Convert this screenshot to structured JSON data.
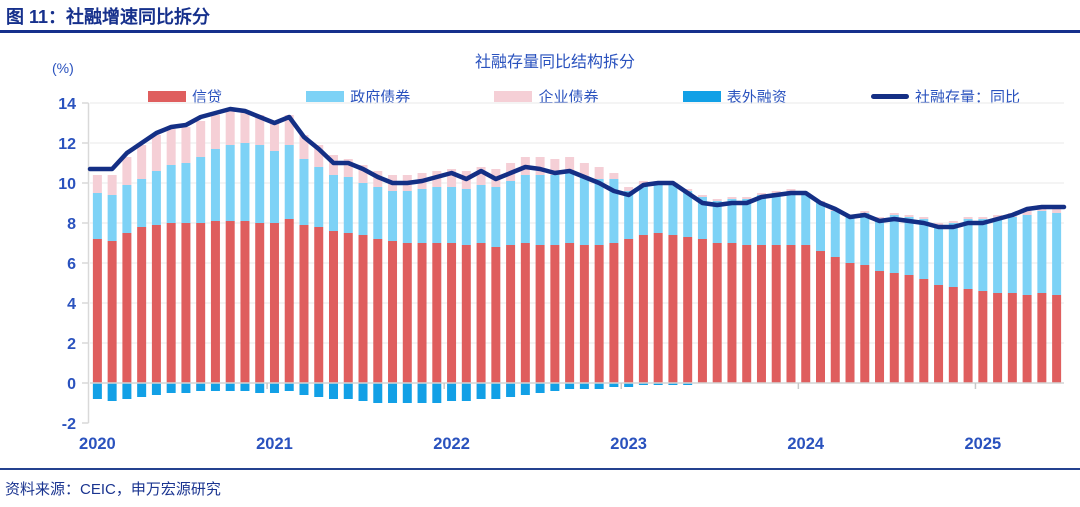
{
  "header": {
    "title": "图 11：社融增速同比拆分"
  },
  "footer": {
    "source": "资料来源：CEIC，申万宏源研究"
  },
  "chart": {
    "title": "社融存量同比结构拆分",
    "unit_label": "(%)"
  },
  "colors": {
    "navy_line": "#142F85",
    "royal_text": "#2A52BE",
    "credit": "#DF5E5E",
    "gov_bonds": "#7DD2F6",
    "corp_bonds": "#F5CFD6",
    "off_balance": "#12A0E6",
    "grid": "#EAEAEA",
    "zero_line": "#D4D4D4",
    "axis": "#D9D9D9"
  },
  "chart_data": {
    "type": "bar",
    "subtype": "stacked-bars-with-line-overlay",
    "title": "社融存量同比结构拆分",
    "ylabel": "(%)",
    "ylim": [
      -2,
      14
    ],
    "yticks": [
      -2,
      0,
      2,
      4,
      6,
      8,
      10,
      12,
      14
    ],
    "grid": true,
    "legend_position": "top",
    "x_year_labels": [
      "2020",
      "2021",
      "2022",
      "2023",
      "2024",
      "2025"
    ],
    "months": [
      "2020-01",
      "2020-02",
      "2020-03",
      "2020-04",
      "2020-05",
      "2020-06",
      "2020-07",
      "2020-08",
      "2020-09",
      "2020-10",
      "2020-11",
      "2020-12",
      "2021-01",
      "2021-02",
      "2021-03",
      "2021-04",
      "2021-05",
      "2021-06",
      "2021-07",
      "2021-08",
      "2021-09",
      "2021-10",
      "2021-11",
      "2021-12",
      "2022-01",
      "2022-02",
      "2022-03",
      "2022-04",
      "2022-05",
      "2022-06",
      "2022-07",
      "2022-08",
      "2022-09",
      "2022-10",
      "2022-11",
      "2022-12",
      "2023-01",
      "2023-02",
      "2023-03",
      "2023-04",
      "2023-05",
      "2023-06",
      "2023-07",
      "2023-08",
      "2023-09",
      "2023-10",
      "2023-11",
      "2023-12",
      "2024-01",
      "2024-02",
      "2024-03",
      "2024-04",
      "2024-05",
      "2024-06",
      "2024-07",
      "2024-08",
      "2024-09",
      "2024-10",
      "2024-11",
      "2024-12",
      "2025-01",
      "2025-02",
      "2025-03",
      "2025-04",
      "2025-05",
      "2025-06"
    ],
    "series": [
      {
        "key": "credit",
        "name": "信贷",
        "color_key": "credit",
        "values": [
          7.2,
          7.1,
          7.5,
          7.8,
          7.9,
          8.0,
          8.0,
          8.0,
          8.1,
          8.1,
          8.1,
          8.0,
          8.0,
          8.2,
          7.9,
          7.8,
          7.6,
          7.5,
          7.4,
          7.2,
          7.1,
          7.0,
          7.0,
          7.0,
          7.0,
          6.9,
          7.0,
          6.8,
          6.9,
          7.0,
          6.9,
          6.9,
          7.0,
          6.9,
          6.9,
          7.0,
          7.2,
          7.4,
          7.5,
          7.4,
          7.3,
          7.2,
          7.0,
          7.0,
          6.9,
          6.9,
          6.9,
          6.9,
          6.9,
          6.6,
          6.3,
          6.0,
          5.9,
          5.6,
          5.5,
          5.4,
          5.2,
          4.9,
          4.8,
          4.7,
          4.6,
          4.5,
          4.5,
          4.4,
          4.5,
          4.4
        ]
      },
      {
        "key": "gov-bonds",
        "name": "政府债券",
        "color_key": "gov_bonds",
        "values": [
          2.3,
          2.3,
          2.4,
          2.4,
          2.7,
          2.9,
          3.0,
          3.3,
          3.6,
          3.8,
          3.9,
          3.9,
          3.6,
          3.7,
          3.3,
          3.0,
          2.8,
          2.8,
          2.6,
          2.6,
          2.5,
          2.6,
          2.7,
          2.8,
          2.8,
          2.8,
          2.9,
          3.0,
          3.2,
          3.4,
          3.5,
          3.5,
          3.5,
          3.4,
          3.3,
          3.2,
          2.4,
          2.5,
          2.5,
          2.5,
          2.3,
          2.1,
          2.1,
          2.2,
          2.3,
          2.5,
          2.6,
          2.7,
          2.5,
          2.4,
          2.3,
          2.3,
          2.6,
          2.6,
          2.9,
          2.9,
          3.0,
          3.0,
          3.2,
          3.5,
          3.6,
          3.7,
          3.8,
          4.0,
          4.1,
          4.1
        ]
      },
      {
        "key": "corp-bonds",
        "name": "企业债券",
        "color_key": "corp_bonds",
        "values": [
          0.9,
          1.0,
          1.4,
          1.7,
          1.8,
          1.8,
          1.8,
          1.8,
          1.7,
          1.7,
          1.6,
          1.5,
          1.4,
          1.5,
          1.2,
          1.1,
          1.0,
          0.9,
          0.9,
          0.8,
          0.8,
          0.8,
          0.8,
          0.8,
          0.9,
          0.9,
          0.9,
          0.9,
          0.9,
          0.9,
          0.9,
          0.8,
          0.8,
          0.7,
          0.6,
          0.3,
          0.2,
          0.2,
          0.1,
          0.1,
          0.1,
          0.1,
          0.1,
          0.1,
          0.1,
          0.1,
          0.1,
          0.1,
          0.1,
          0.1,
          0.1,
          0.1,
          0.1,
          0.1,
          0.1,
          0.1,
          0.1,
          0.1,
          0.1,
          0.1,
          0.1,
          0.2,
          0.2,
          0.2,
          0.3,
          0.3
        ]
      },
      {
        "key": "off-balance",
        "name": "表外融资",
        "color_key": "off_balance",
        "values": [
          -0.8,
          -0.9,
          -0.8,
          -0.7,
          -0.6,
          -0.5,
          -0.5,
          -0.4,
          -0.4,
          -0.4,
          -0.4,
          -0.5,
          -0.5,
          -0.4,
          -0.6,
          -0.7,
          -0.8,
          -0.8,
          -0.9,
          -1.0,
          -1.0,
          -1.0,
          -1.0,
          -1.0,
          -0.9,
          -0.9,
          -0.8,
          -0.8,
          -0.7,
          -0.6,
          -0.5,
          -0.4,
          -0.3,
          -0.3,
          -0.3,
          -0.2,
          -0.2,
          -0.1,
          -0.1,
          -0.1,
          -0.1,
          0,
          0,
          0,
          0,
          0,
          0,
          0,
          0,
          0,
          0,
          0,
          0,
          0,
          0,
          0,
          0,
          0,
          0,
          0,
          0,
          0,
          0,
          0,
          0,
          0
        ]
      }
    ],
    "line_series": {
      "key": "tsf-yoy",
      "name": "社融存量：同比",
      "values": [
        10.7,
        10.7,
        11.5,
        12.0,
        12.5,
        12.8,
        12.9,
        13.3,
        13.5,
        13.7,
        13.6,
        13.3,
        13.0,
        13.3,
        12.3,
        11.7,
        11.0,
        11.0,
        10.7,
        10.3,
        10.0,
        10.0,
        10.1,
        10.3,
        10.5,
        10.2,
        10.6,
        10.2,
        10.5,
        10.8,
        10.7,
        10.5,
        10.6,
        10.3,
        10.0,
        9.6,
        9.4,
        9.9,
        10.0,
        10.0,
        9.5,
        9.0,
        8.9,
        9.0,
        9.0,
        9.3,
        9.4,
        9.5,
        9.5,
        9.0,
        8.7,
        8.3,
        8.4,
        8.1,
        8.2,
        8.1,
        8.0,
        7.8,
        7.8,
        8.0,
        8.0,
        8.2,
        8.4,
        8.7,
        8.8,
        8.8
      ]
    }
  }
}
